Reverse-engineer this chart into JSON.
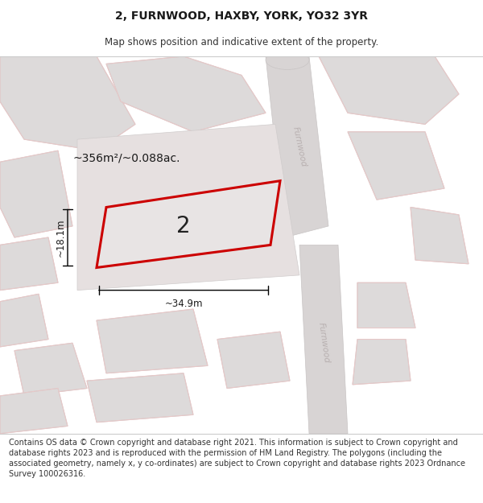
{
  "title": "2, FURNWOOD, HAXBY, YORK, YO32 3YR",
  "subtitle": "Map shows position and indicative extent of the property.",
  "footer": "Contains OS data © Crown copyright and database right 2021. This information is subject to Crown copyright and database rights 2023 and is reproduced with the permission of HM Land Registry. The polygons (including the associated geometry, namely x, y co-ordinates) are subject to Crown copyright and database rights 2023 Ordnance Survey 100026316.",
  "label_number": "2",
  "area_label": "~356m²/~0.088ac.",
  "width_label": "~34.9m",
  "height_label": "~18.1m",
  "title_fontsize": 10,
  "subtitle_fontsize": 8.5,
  "footer_fontsize": 7.0,
  "map_bg": "#eeecec",
  "bldg_fill": "#dddada",
  "bldg_edge": "#cccccc",
  "road_fill": "#d8d4d4",
  "highlight_fill": "#e6e0e0",
  "prop_fill": "#e8e4e4",
  "prop_edge": "#cc0000",
  "road_label_color": "#b8b0b0",
  "street_name": "Furnwood"
}
